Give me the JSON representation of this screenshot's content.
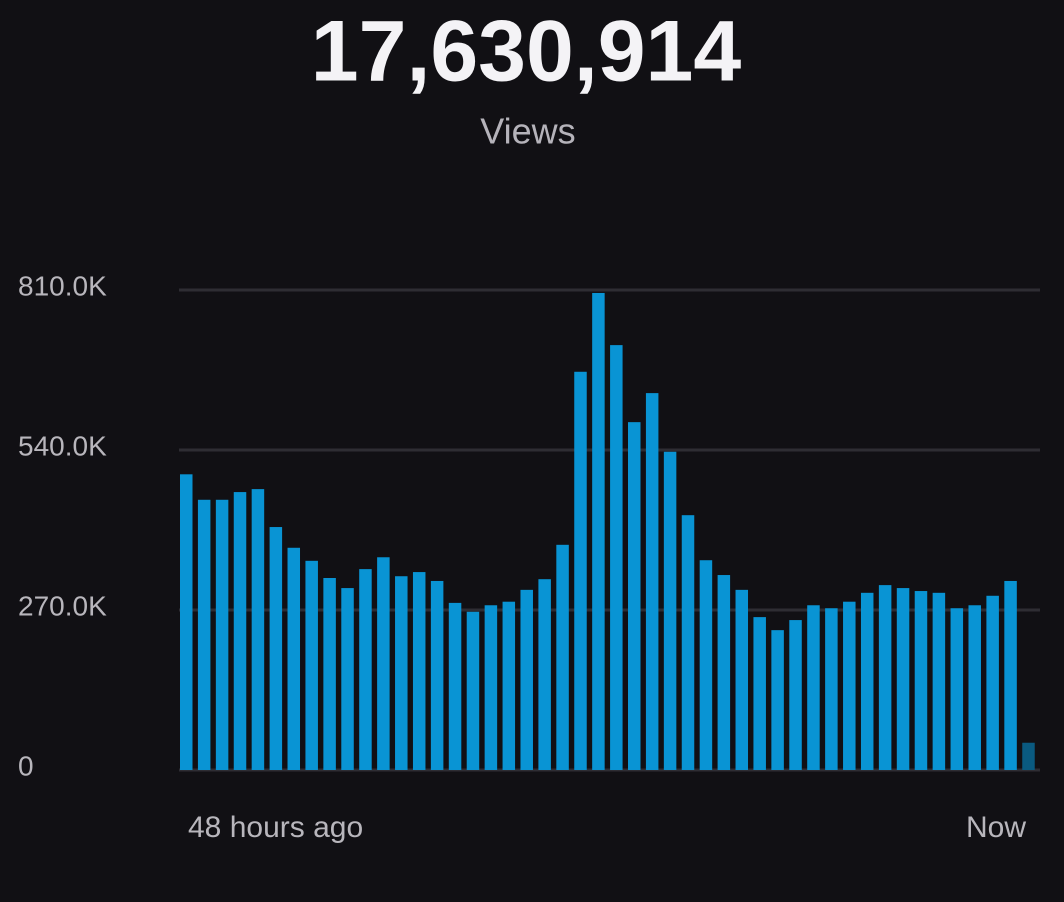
{
  "header": {
    "total": "17,630,914",
    "label": "Views"
  },
  "chart_data": {
    "type": "bar",
    "values": [
      499000,
      456000,
      456000,
      469000,
      474000,
      410000,
      375000,
      353000,
      324000,
      307000,
      339000,
      359000,
      327000,
      334000,
      319000,
      282000,
      267000,
      278000,
      284000,
      304000,
      322000,
      380000,
      672000,
      805000,
      717000,
      587000,
      636000,
      537000,
      430000,
      354000,
      329000,
      304000,
      258000,
      236000,
      253000,
      278000,
      273000,
      284000,
      299000,
      312000,
      307000,
      302000,
      299000,
      273000,
      278000,
      294000,
      319000,
      46000
    ],
    "color": "#0994d4",
    "current_color": "#0a5a80",
    "x_labels": [
      "48 hours ago",
      "Now"
    ],
    "ylim": [
      0,
      810000
    ],
    "yticks": [
      0,
      {
        "value": 270000,
        "label": "270.0K"
      },
      {
        "value": 540000,
        "label": "540.0K"
      },
      {
        "value": 810000,
        "label": "810.0K"
      }
    ],
    "grid": true
  }
}
